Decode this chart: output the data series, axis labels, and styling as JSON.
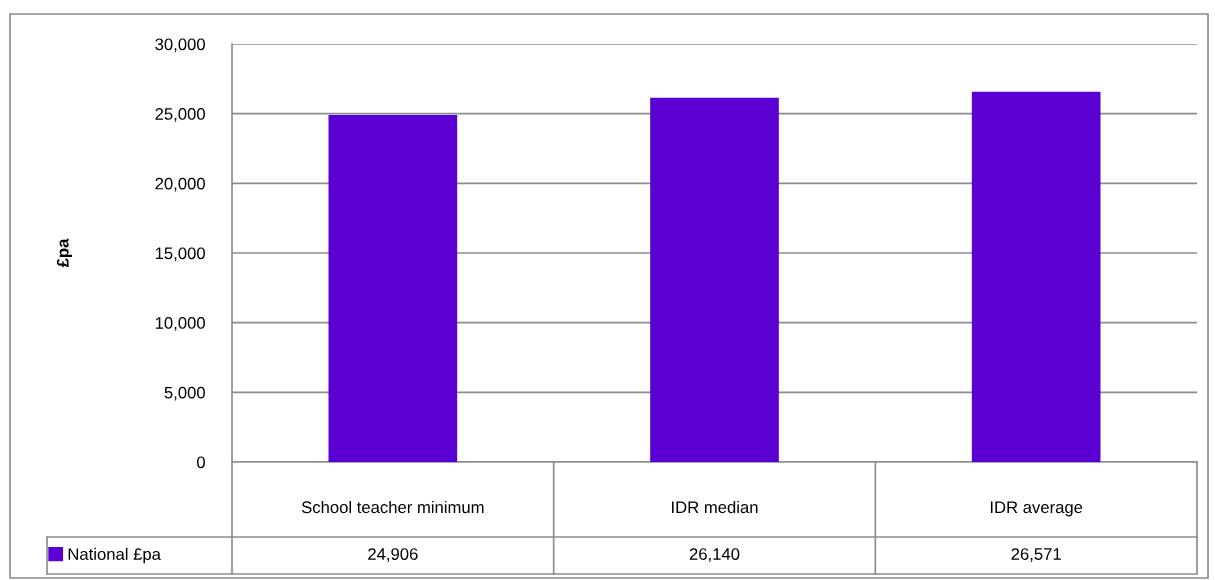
{
  "chart_data": {
    "type": "bar",
    "ylabel": "£pa",
    "categories": [
      "School teacher minimum",
      "IDR median",
      "IDR average"
    ],
    "series": [
      {
        "name": "National £pa",
        "color": "#5b00d3",
        "values": [
          24906,
          26140,
          26571
        ],
        "value_labels": [
          "24,906",
          "26,140",
          "26,571"
        ]
      }
    ],
    "ylim": [
      0,
      30000
    ],
    "yticks": [
      0,
      {
        "value": 5000,
        "label": "5,000"
      },
      {
        "value": 10000,
        "label": "10,000"
      },
      {
        "value": 15000,
        "label": "15,000"
      },
      {
        "value": 20000,
        "label": "20,000"
      },
      {
        "value": 25000,
        "label": "25,000"
      },
      {
        "value": 30000,
        "label": "30,000"
      }
    ],
    "grid": "y",
    "legend": "bottom left"
  }
}
